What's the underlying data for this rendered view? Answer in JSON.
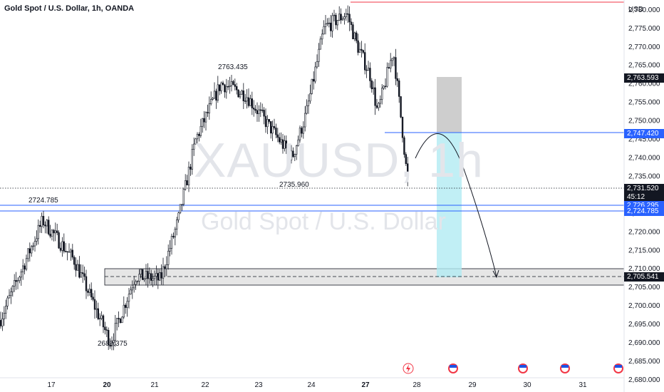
{
  "header": {
    "title": "Gold Spot / U.S. Dollar, 1h, OANDA"
  },
  "watermark": {
    "symbol": "XAUUSD, 1h",
    "description": "Gold Spot / U.S. Dollar"
  },
  "price_axis": {
    "currency": "USD"
  },
  "price_tags": [
    {
      "label": "2,763.593",
      "bg": "#131722",
      "color": "#ffffff"
    },
    {
      "label": "2,747.420",
      "bg": "#2962ff",
      "color": "#ffffff"
    },
    {
      "label": "2,731.520",
      "sub": "45:12",
      "bg": "#131722",
      "color": "#ffffff"
    },
    {
      "label": "2,726.295",
      "bg": "#2962ff",
      "color": "#ffffff"
    },
    {
      "label": "2,724.785",
      "bg": "#2962ff",
      "color": "#ffffff"
    },
    {
      "label": "2,705.541",
      "bg": "#131722",
      "color": "#ffffff"
    }
  ],
  "colors": {
    "candle": "#131722",
    "level_line": "#2962ff",
    "high_line": "#f23645",
    "zone_fill": "#d9d9d9",
    "target_fill": "#b2ebf2",
    "stop_fill": "#bdbdbd",
    "grid_text": "#131722"
  },
  "event_icons": [
    {
      "name": "flash-event-icon",
      "x_label": "28"
    },
    {
      "name": "us-flag-event-icon",
      "x_label": "28"
    },
    {
      "name": "us-flag-event-icon",
      "x_label": "30"
    },
    {
      "name": "us-flag-event-icon",
      "x_label": "31"
    },
    {
      "name": "us-flag-event-icon",
      "x_label": "31"
    }
  ],
  "chart_data": {
    "type": "candlestick",
    "title": "Gold Spot / U.S. Dollar, 1h, OANDA",
    "x_tick_labels": [
      "17",
      "20",
      "21",
      "22",
      "23",
      "24",
      "27",
      "28",
      "29",
      "30",
      "31"
    ],
    "y_tick_labels": [
      "2,680.000",
      "2,685.000",
      "2,690.000",
      "2,695.000",
      "2,700.000",
      "2,705.000",
      "2,710.000",
      "2,715.000",
      "2,720.000",
      "2,725.000",
      "2,730.000",
      "2,735.000",
      "2,740.000",
      "2,745.000",
      "2,750.000",
      "2,755.000",
      "2,760.000",
      "2,765.000",
      "2,770.000",
      "2,775.000",
      "2,780.000"
    ],
    "ylim": [
      2677,
      2782
    ],
    "annotations": [
      {
        "text": "2763.435",
        "value": 2763.435
      },
      {
        "text": "2724.785",
        "value": 2724.785
      },
      {
        "text": "2735.960",
        "value": 2735.96
      },
      {
        "text": "2689.375",
        "value": 2689.375
      }
    ],
    "levels": [
      {
        "name": "swing-high",
        "value": 2782
      },
      {
        "name": "resistance",
        "value": 2747.42
      },
      {
        "name": "last-price",
        "value": 2731.52
      },
      {
        "name": "support-upper",
        "value": 2726.295
      },
      {
        "name": "support-lower",
        "value": 2724.785
      },
      {
        "name": "target-zone-mid",
        "value": 2705.541
      }
    ],
    "target_zone": {
      "top": 2708.0,
      "bottom": 2703.0
    },
    "long_short_box": {
      "stop_top": 2763.593,
      "entry": 2747.42,
      "target": 2706.5
    },
    "anchors": [
      {
        "x_label": "16",
        "value": 2696
      },
      {
        "x_label": "17",
        "value": 2723
      },
      {
        "x_label": "18",
        "value": 2712
      },
      {
        "x_label": "20",
        "value": 2690
      },
      {
        "x_label": "20.5",
        "value": 2708
      },
      {
        "x_label": "21",
        "value": 2707
      },
      {
        "x_label": "21.5",
        "value": 2723
      },
      {
        "x_label": "22",
        "value": 2745
      },
      {
        "x_label": "22.5",
        "value": 2760
      },
      {
        "x_label": "23",
        "value": 2757
      },
      {
        "x_label": "23.5",
        "value": 2740
      },
      {
        "x_label": "24",
        "value": 2752
      },
      {
        "x_label": "24.5",
        "value": 2775
      },
      {
        "x_label": "25",
        "value": 2779
      },
      {
        "x_label": "25.5",
        "value": 2771
      },
      {
        "x_label": "27",
        "value": 2762
      },
      {
        "x_label": "27.3",
        "value": 2752
      },
      {
        "x_label": "27.6",
        "value": 2769
      },
      {
        "x_label": "27.8",
        "value": 2747
      },
      {
        "x_label": "28",
        "value": 2731.52
      }
    ]
  }
}
